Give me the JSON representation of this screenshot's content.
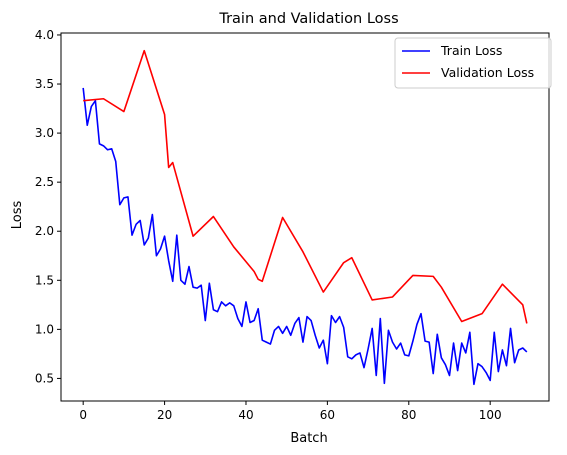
{
  "chart_data": {
    "type": "line",
    "title": "Train and Validation Loss",
    "xlabel": "Batch",
    "ylabel": "Loss",
    "xlim": [
      -5.45,
      114.45
    ],
    "ylim": [
      0.27,
      4.02
    ],
    "xticks": [
      0,
      20,
      40,
      60,
      80,
      100
    ],
    "yticks": [
      0.5,
      1.0,
      1.5,
      2.0,
      2.5,
      3.0,
      3.5,
      4.0
    ],
    "ytick_labels": [
      "0.5",
      "1.0",
      "1.5",
      "2.0",
      "2.5",
      "3.0",
      "3.5",
      "4.0"
    ],
    "grid": false,
    "legend_position": "upper right",
    "series": [
      {
        "name": "Train Loss",
        "color": "#0000ff",
        "x": [
          0,
          1,
          2,
          3,
          4,
          5,
          6,
          7,
          8,
          9,
          10,
          11,
          12,
          13,
          14,
          15,
          16,
          17,
          18,
          19,
          20,
          21,
          22,
          23,
          24,
          25,
          26,
          27,
          28,
          29,
          30,
          31,
          32,
          33,
          34,
          35,
          36,
          37,
          38,
          39,
          40,
          41,
          42,
          43,
          44,
          45,
          46,
          47,
          48,
          49,
          50,
          51,
          52,
          53,
          54,
          55,
          56,
          57,
          58,
          59,
          60,
          61,
          62,
          63,
          64,
          65,
          66,
          67,
          68,
          69,
          70,
          71,
          72,
          73,
          74,
          75,
          76,
          77,
          78,
          79,
          80,
          81,
          82,
          83,
          84,
          85,
          86,
          87,
          88,
          89,
          90,
          91,
          92,
          93,
          94,
          95,
          96,
          97,
          98,
          99,
          100,
          101,
          102,
          103,
          104,
          105,
          106,
          107,
          108,
          109
        ],
        "y": [
          3.46,
          3.08,
          3.27,
          3.33,
          2.89,
          2.87,
          2.83,
          2.84,
          2.71,
          2.27,
          2.34,
          2.35,
          1.96,
          2.07,
          2.11,
          1.86,
          1.93,
          2.17,
          1.75,
          1.82,
          1.95,
          1.7,
          1.49,
          1.96,
          1.5,
          1.46,
          1.64,
          1.43,
          1.42,
          1.45,
          1.09,
          1.47,
          1.2,
          1.18,
          1.28,
          1.24,
          1.27,
          1.24,
          1.11,
          1.03,
          1.28,
          1.07,
          1.09,
          1.21,
          0.89,
          0.87,
          0.85,
          0.99,
          1.03,
          0.96,
          1.03,
          0.94,
          1.06,
          1.12,
          0.87,
          1.13,
          1.09,
          0.94,
          0.81,
          0.89,
          0.65,
          1.14,
          1.07,
          1.13,
          1.02,
          0.72,
          0.7,
          0.74,
          0.76,
          0.61,
          0.8,
          1.01,
          0.53,
          1.11,
          0.45,
          0.99,
          0.87,
          0.8,
          0.86,
          0.74,
          0.73,
          0.88,
          1.05,
          1.16,
          0.88,
          0.87,
          0.55,
          0.95,
          0.71,
          0.64,
          0.53,
          0.86,
          0.58,
          0.86,
          0.76,
          0.97,
          0.44,
          0.65,
          0.62,
          0.56,
          0.48,
          0.97,
          0.57,
          0.79,
          0.63,
          1.01,
          0.66,
          0.79,
          0.81,
          0.77
        ]
      },
      {
        "name": "Validation Loss",
        "color": "#ff0000",
        "x": [
          0,
          5,
          10,
          15,
          20,
          21,
          22,
          27,
          32,
          37,
          42,
          43,
          44,
          49,
          54,
          59,
          60,
          64,
          66,
          71,
          76,
          81,
          86,
          88,
          93,
          98,
          103,
          108,
          109
        ],
        "y": [
          3.33,
          3.35,
          3.22,
          3.84,
          3.19,
          2.65,
          2.7,
          1.95,
          2.15,
          1.84,
          1.59,
          1.51,
          1.49,
          2.14,
          1.79,
          1.38,
          1.44,
          1.68,
          1.73,
          1.3,
          1.33,
          1.55,
          1.54,
          1.43,
          1.08,
          1.16,
          1.46,
          1.25,
          1.06
        ]
      }
    ]
  }
}
